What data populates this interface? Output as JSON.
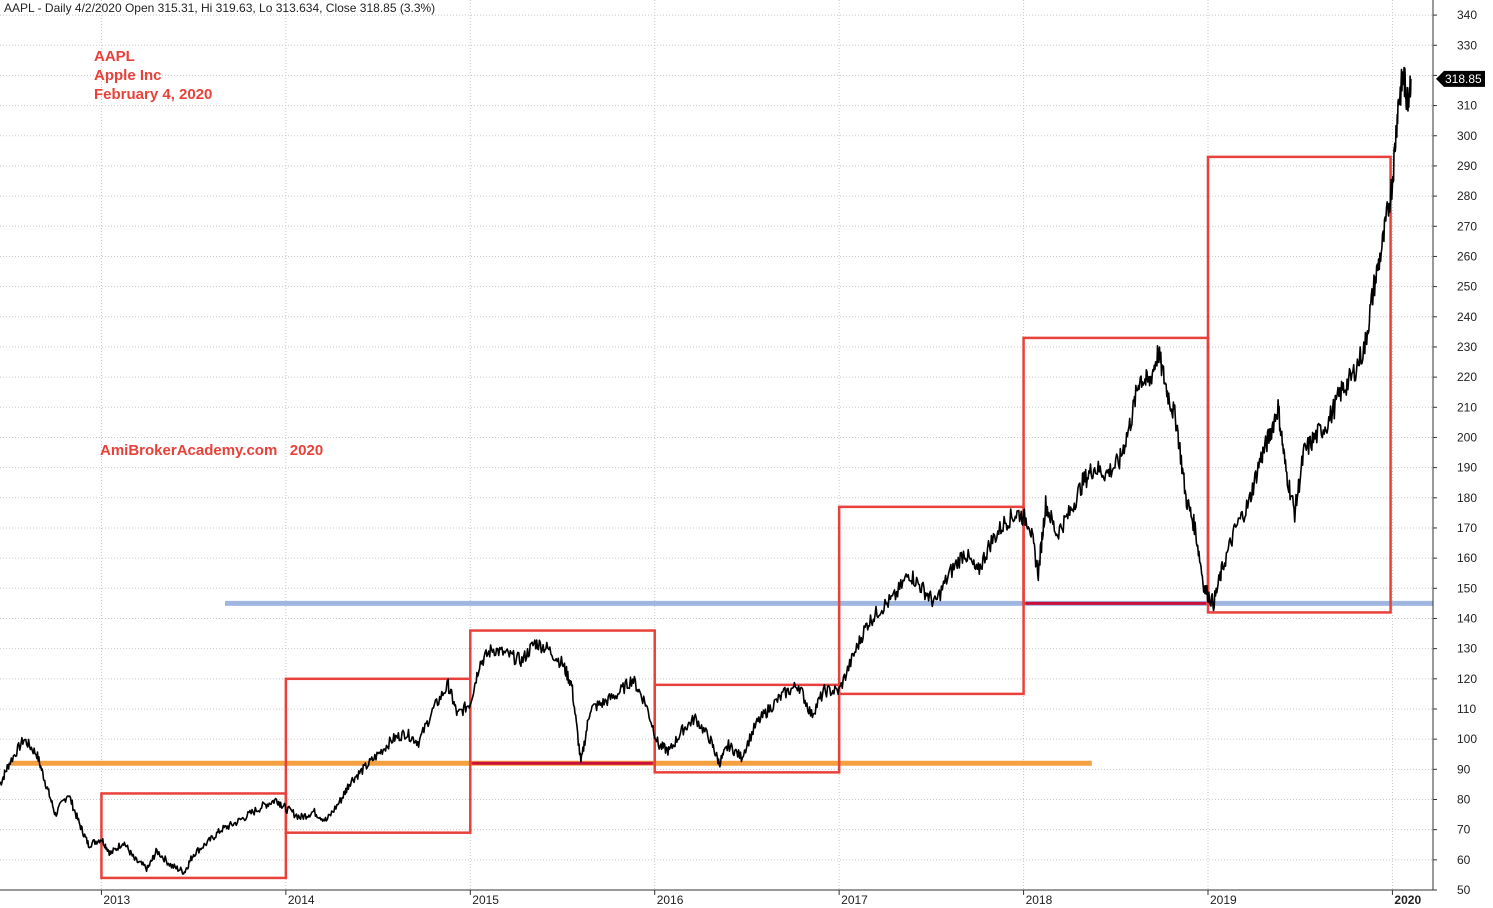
{
  "header": {
    "text": "AAPL - Daily 4/2/2020 Open 315.31, Hi 319.63, Lo 313.634, Close 318.85 (3.3%)"
  },
  "annotations": {
    "ticker": "AAPL",
    "company": "Apple Inc",
    "date": "February 4, 2020",
    "watermark": "AmiBrokerAcademy.com   2020"
  },
  "colors": {
    "price": "#000000",
    "box": "#e8413a",
    "support_orange": "#f5a040",
    "support_blue": "#9fb6e0",
    "box_bottom": "#c8103a",
    "grid": "#c8c8c8"
  },
  "chart_data": {
    "type": "line",
    "title": "",
    "xlabel": "",
    "ylabel": "",
    "ylim": [
      50,
      345
    ],
    "xlim": [
      2012.45,
      2020.22
    ],
    "yticks": [
      50,
      60,
      70,
      80,
      90,
      100,
      110,
      120,
      130,
      140,
      150,
      160,
      170,
      180,
      190,
      200,
      210,
      220,
      230,
      240,
      250,
      260,
      270,
      280,
      290,
      300,
      310,
      320,
      330,
      340
    ],
    "xticks": [
      {
        "x": 2013,
        "label": "2013",
        "bold": false
      },
      {
        "x": 2014,
        "label": "2014",
        "bold": false
      },
      {
        "x": 2015,
        "label": "2015",
        "bold": false
      },
      {
        "x": 2016,
        "label": "2016",
        "bold": false
      },
      {
        "x": 2017,
        "label": "2017",
        "bold": false
      },
      {
        "x": 2018,
        "label": "2018",
        "bold": false
      },
      {
        "x": 2019,
        "label": "2019",
        "bold": false
      },
      {
        "x": 2020,
        "label": "2020",
        "bold": true
      }
    ],
    "last_value_label": "318.85",
    "last_value": 318.85,
    "series": [
      {
        "x": [
          2012.45,
          2012.5,
          2012.58,
          2012.65,
          2012.7,
          2012.75,
          2012.82,
          2012.88,
          2012.93,
          2013.0,
          2013.05,
          2013.12,
          2013.18,
          2013.25,
          2013.3,
          2013.38,
          2013.45,
          2013.5,
          2013.58,
          2013.65,
          2013.72,
          2013.8,
          2013.88,
          2013.95,
          2014.0,
          2014.08,
          2014.15,
          2014.22,
          2014.3,
          2014.35,
          2014.42,
          2014.5,
          2014.58,
          2014.65,
          2014.72,
          2014.8,
          2014.88,
          2014.93,
          2015.0,
          2015.05,
          2015.12,
          2015.2,
          2015.28,
          2015.35,
          2015.42,
          2015.5,
          2015.55,
          2015.6,
          2015.65,
          2015.72,
          2015.8,
          2015.88,
          2015.95,
          2016.02,
          2016.08,
          2016.15,
          2016.22,
          2016.3,
          2016.35,
          2016.4,
          2016.47,
          2016.55,
          2016.62,
          2016.7,
          2016.78,
          2016.85,
          2016.92,
          2017.0,
          2017.08,
          2017.15,
          2017.22,
          2017.3,
          2017.38,
          2017.45,
          2017.52,
          2017.6,
          2017.68,
          2017.75,
          2017.82,
          2017.9,
          2017.97,
          2018.03,
          2018.08,
          2018.12,
          2018.18,
          2018.25,
          2018.32,
          2018.38,
          2018.45,
          2018.52,
          2018.58,
          2018.63,
          2018.68,
          2018.73,
          2018.78,
          2018.83,
          2018.88,
          2018.93,
          2018.98,
          2019.03,
          2019.08,
          2019.15,
          2019.22,
          2019.28,
          2019.33,
          2019.38,
          2019.42,
          2019.47,
          2019.52,
          2019.58,
          2019.65,
          2019.72,
          2019.78,
          2019.85,
          2019.9,
          2019.95,
          2020.0,
          2020.03,
          2020.06,
          2020.08,
          2020.1
        ],
        "y": [
          85,
          92,
          100,
          95,
          85,
          75,
          82,
          72,
          65,
          67,
          62,
          66,
          60,
          57,
          63,
          58,
          56,
          62,
          66,
          70,
          72,
          75,
          78,
          80,
          77,
          74,
          76,
          73,
          80,
          86,
          90,
          95,
          100,
          102,
          99,
          110,
          118,
          108,
          112,
          125,
          130,
          128,
          126,
          132,
          130,
          125,
          118,
          92,
          110,
          112,
          115,
          120,
          112,
          98,
          96,
          103,
          107,
          100,
          92,
          98,
          94,
          105,
          110,
          115,
          118,
          108,
          116,
          116,
          128,
          138,
          143,
          147,
          155,
          150,
          145,
          155,
          162,
          155,
          165,
          172,
          175,
          172,
          155,
          178,
          168,
          175,
          185,
          190,
          188,
          192,
          205,
          220,
          218,
          228,
          215,
          205,
          180,
          170,
          150,
          145,
          157,
          170,
          178,
          192,
          200,
          210,
          190,
          175,
          195,
          200,
          205,
          215,
          220,
          230,
          250,
          265,
          285,
          310,
          320,
          312,
          318.85
        ]
      }
    ],
    "boxes": [
      {
        "x0": 2013.0,
        "x1": 2014.0,
        "y0": 54,
        "y1": 82
      },
      {
        "x0": 2014.0,
        "x1": 2015.0,
        "y0": 69,
        "y1": 120
      },
      {
        "x0": 2015.0,
        "x1": 2016.0,
        "y0": 92,
        "y1": 136
      },
      {
        "x0": 2016.0,
        "x1": 2017.0,
        "y0": 89,
        "y1": 118
      },
      {
        "x0": 2017.0,
        "x1": 2018.0,
        "y0": 115,
        "y1": 177
      },
      {
        "x0": 2018.0,
        "x1": 2019.0,
        "y0": 145,
        "y1": 233
      },
      {
        "x0": 2019.0,
        "x1": 2019.99,
        "y0": 142,
        "y1": 293
      }
    ],
    "hlines": [
      {
        "y": 92,
        "x0": 2012.5,
        "x1": 2018.37,
        "color": "#f5a040"
      },
      {
        "y": 145,
        "x0": 2013.67,
        "x1": 2020.22,
        "color": "#9fb6e0"
      }
    ]
  }
}
